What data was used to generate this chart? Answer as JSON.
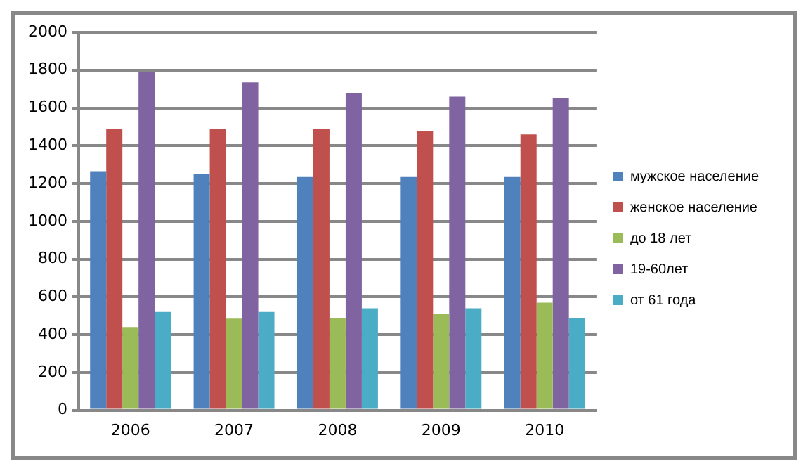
{
  "chart_data": {
    "type": "bar",
    "categories": [
      "2006",
      "2007",
      "2008",
      "2009",
      "2010"
    ],
    "series": [
      {
        "name": "мужское население",
        "color": "#4f81bd",
        "values": [
          1265,
          1250,
          1235,
          1235,
          1235
        ]
      },
      {
        "name": "женское население",
        "color": "#c0504d",
        "values": [
          1490,
          1490,
          1490,
          1475,
          1460
        ]
      },
      {
        "name": "до 18 лет",
        "color": "#9bbb59",
        "values": [
          440,
          485,
          490,
          510,
          570
        ]
      },
      {
        "name": "19-60лет",
        "color": "#8064a2",
        "values": [
          1790,
          1735,
          1680,
          1660,
          1650
        ]
      },
      {
        "name": "от 61 года",
        "color": "#4bacc6",
        "values": [
          520,
          520,
          540,
          540,
          490
        ]
      }
    ],
    "ylim": [
      0,
      2000
    ],
    "yticks": [
      0,
      200,
      400,
      600,
      800,
      1000,
      1200,
      1400,
      1600,
      1800,
      2000
    ],
    "grid": "y",
    "legend": "right"
  }
}
